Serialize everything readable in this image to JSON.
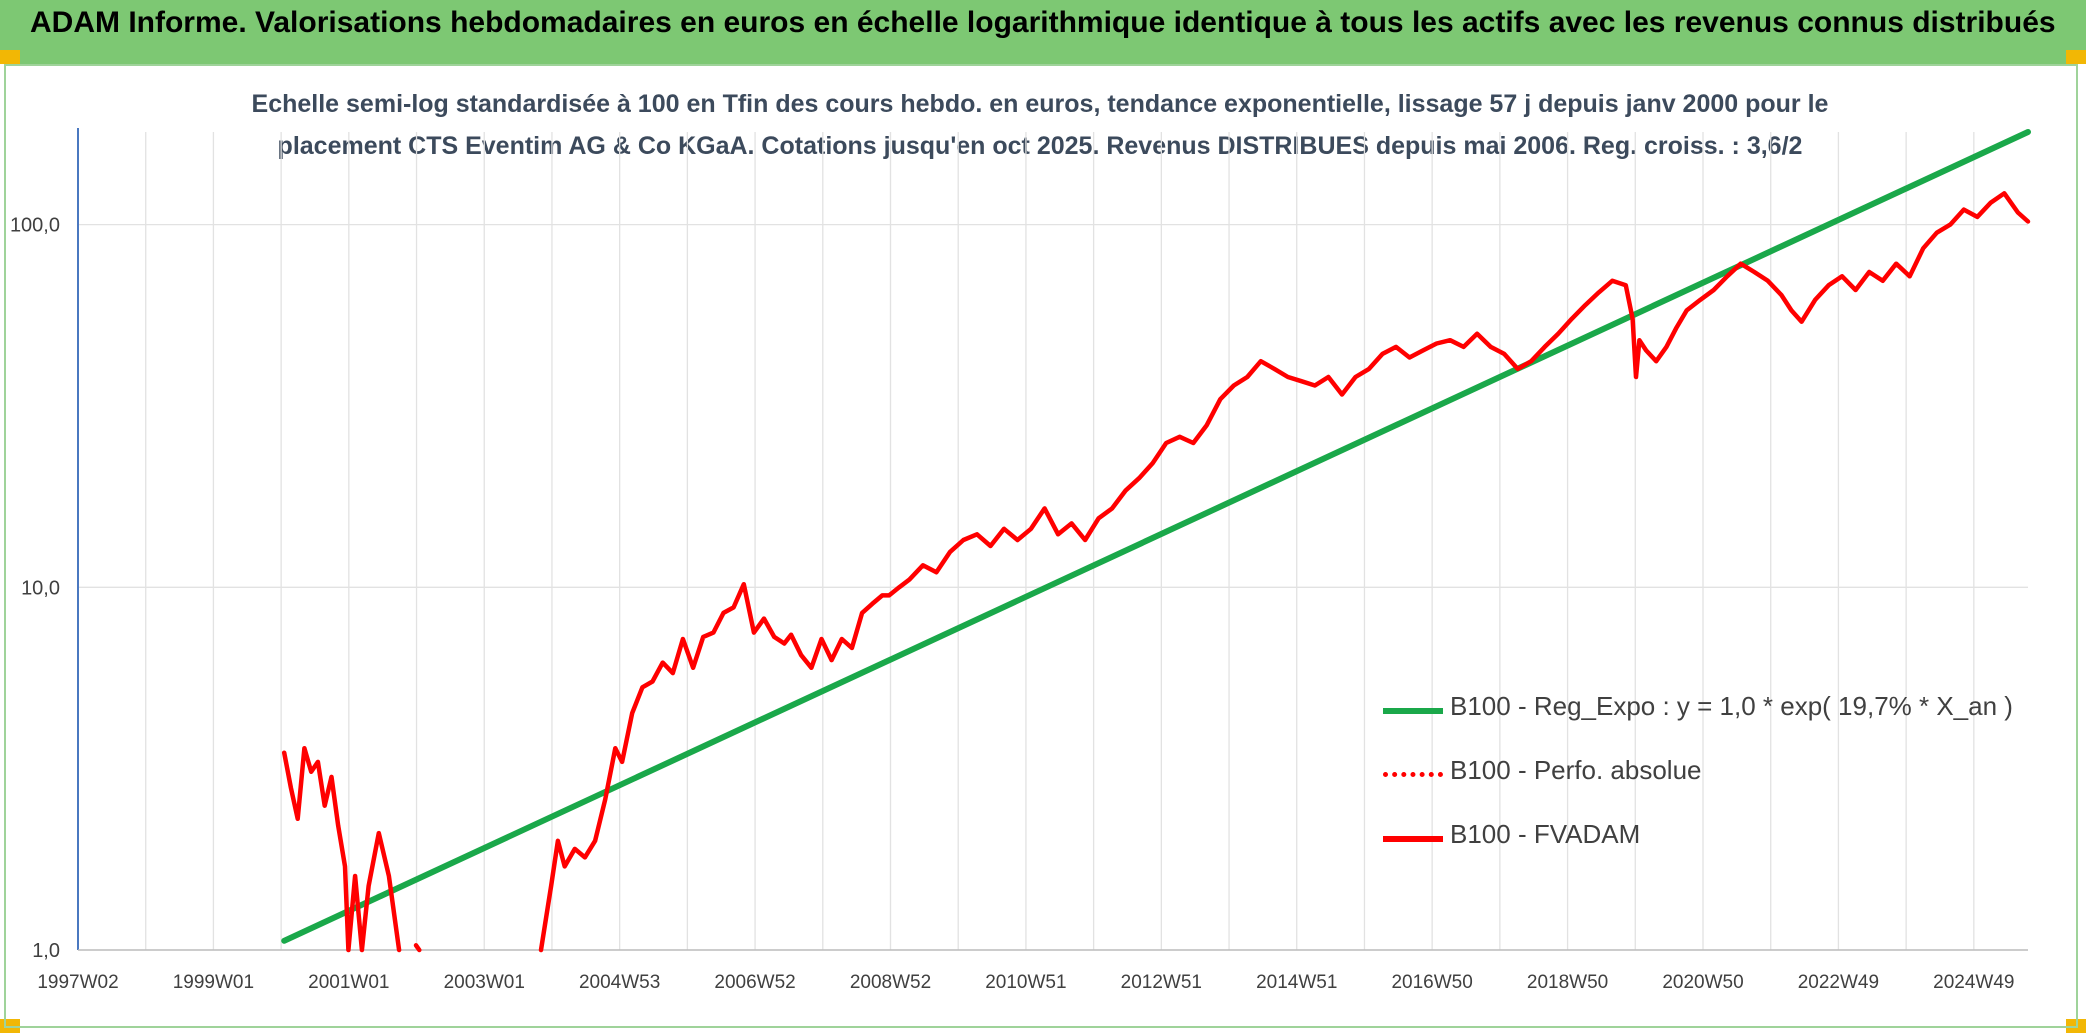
{
  "header": {
    "title": "ADAM Informe. Valorisations hebdomadaires en euros en échelle logarithmique identique à tous les actifs avec les revenus connus distribués"
  },
  "chart_data": {
    "type": "line",
    "title_line1": "Echelle semi-log standardisée à 100 en Tfin des cours hebdo. en euros, tendance exponentielle, lissage 57 j depuis janv 2000 pour le",
    "title_line2": "placement CTS Eventim AG & Co KGaA. Cotations jusqu'en oct 2025. Revenus DISTRIBUES depuis mai 2006. Reg. croiss. : 3,6/2",
    "y_scale": "log",
    "ylim": [
      1,
      180
    ],
    "xlim": [
      1997.0,
      2025.85
    ],
    "y_ticks": [
      "1,0",
      "10,0",
      "100,0"
    ],
    "x_ticks": [
      "1997W02",
      "1999W01",
      "2001W01",
      "2003W01",
      "2004W53",
      "2006W52",
      "2008W52",
      "2010W51",
      "2012W51",
      "2014W51",
      "2016W50",
      "2018W50",
      "2020W50",
      "2022W49",
      "2024W49"
    ],
    "grid": true,
    "legend_position": "right",
    "series": [
      {
        "name": "B100 - Reg_Expo : y = 1,0 * exp( 19,7% * X_an )",
        "color": "#1aa84a",
        "style": "solid",
        "x": [
          2000.05,
          2025.85
        ],
        "y": [
          1.06,
          180
        ]
      },
      {
        "name": "B100 - Perfo. absolue",
        "color": "#ff0000",
        "style": "dotted",
        "x": [],
        "y": []
      },
      {
        "name": "B100 - FVADAM",
        "color": "#ff0000",
        "style": "solid",
        "segments": [
          {
            "x": [
              2000.05,
              2000.15,
              2000.25,
              2000.35,
              2000.45,
              2000.55,
              2000.65,
              2000.75,
              2000.85,
              2000.95,
              2001.0,
              2001.1,
              2001.2,
              2001.3,
              2001.45,
              2001.6,
              2001.75
            ],
            "y": [
              3.5,
              2.8,
              2.3,
              3.6,
              3.1,
              3.3,
              2.5,
              3.0,
              2.2,
              1.7,
              1.0,
              1.6,
              1.0,
              1.5,
              2.1,
              1.6,
              1.0
            ]
          },
          {
            "x": [
              2002.0,
              2002.05
            ],
            "y": [
              1.03,
              1.0
            ]
          },
          {
            "x": [
              2003.85,
              2004.0,
              2004.1,
              2004.2,
              2004.35,
              2004.5,
              2004.65,
              2004.8,
              2004.95,
              2005.05,
              2005.2,
              2005.35,
              2005.5,
              2005.65,
              2005.8,
              2005.95,
              2006.1,
              2006.25,
              2006.4,
              2006.55,
              2006.7,
              2006.85,
              2007.0,
              2007.15,
              2007.3,
              2007.45,
              2007.55,
              2007.7,
              2007.85,
              2008.0,
              2008.15,
              2008.3,
              2008.45,
              2008.6,
              2008.75,
              2008.9,
              2009.0,
              2009.15,
              2009.3,
              2009.5,
              2009.7,
              2009.9,
              2010.1,
              2010.3,
              2010.5,
              2010.7,
              2010.9,
              2011.1,
              2011.3,
              2011.5,
              2011.7,
              2011.9,
              2012.1,
              2012.3,
              2012.5,
              2012.7,
              2012.9,
              2013.1,
              2013.3,
              2013.5,
              2013.7,
              2013.9,
              2014.1,
              2014.3,
              2014.5,
              2014.7,
              2014.9,
              2015.1,
              2015.3,
              2015.5,
              2015.7,
              2015.9,
              2016.1,
              2016.3,
              2016.5,
              2016.7,
              2016.9,
              2017.1,
              2017.3,
              2017.5,
              2017.7,
              2017.9,
              2018.1,
              2018.3,
              2018.5,
              2018.7,
              2018.9,
              2019.1,
              2019.3,
              2019.5,
              2019.7,
              2019.9,
              2020.0,
              2020.05,
              2020.1,
              2020.2,
              2020.35,
              2020.5,
              2020.65,
              2020.8,
              2021.0,
              2021.2,
              2021.4,
              2021.6,
              2021.8,
              2022.0,
              2022.2,
              2022.35,
              2022.5,
              2022.7,
              2022.9,
              2023.1,
              2023.3,
              2023.5,
              2023.7,
              2023.9,
              2024.1,
              2024.3,
              2024.5,
              2024.7,
              2024.9,
              2025.1,
              2025.3,
              2025.5,
              2025.7,
              2025.85
            ],
            "y": [
              1.0,
              1.5,
              2.0,
              1.7,
              1.9,
              1.8,
              2.0,
              2.6,
              3.6,
              3.3,
              4.5,
              5.3,
              5.5,
              6.2,
              5.8,
              7.2,
              6.0,
              7.3,
              7.5,
              8.5,
              8.8,
              10.2,
              7.5,
              8.2,
              7.3,
              7.0,
              7.4,
              6.5,
              6.0,
              7.2,
              6.3,
              7.2,
              6.8,
              8.5,
              9.0,
              9.5,
              9.5,
              10.0,
              10.5,
              11.5,
              11.0,
              12.5,
              13.5,
              14.0,
              13.0,
              14.5,
              13.5,
              14.5,
              16.5,
              14.0,
              15.0,
              13.5,
              15.5,
              16.5,
              18.5,
              20.0,
              22.0,
              25.0,
              26.0,
              25.0,
              28.0,
              33.0,
              36.0,
              38.0,
              42.0,
              40.0,
              38.0,
              37.0,
              36.0,
              38.0,
              34.0,
              38.0,
              40.0,
              44.0,
              46.0,
              43.0,
              45.0,
              47.0,
              48.0,
              46.0,
              50.0,
              46.0,
              44.0,
              40.0,
              42.0,
              46.0,
              50.0,
              55.0,
              60.0,
              65.0,
              70.0,
              68.0,
              55.0,
              38.0,
              48.0,
              45.0,
              42.0,
              46.0,
              52.0,
              58.0,
              62.0,
              66.0,
              72.0,
              78.0,
              74.0,
              70.0,
              64.0,
              58.0,
              54.0,
              62.0,
              68.0,
              72.0,
              66.0,
              74.0,
              70.0,
              78.0,
              72.0,
              86.0,
              95.0,
              100.0,
              110.0,
              105.0,
              115.0,
              122.0,
              108.0,
              102.0
            ]
          }
        ]
      }
    ]
  }
}
